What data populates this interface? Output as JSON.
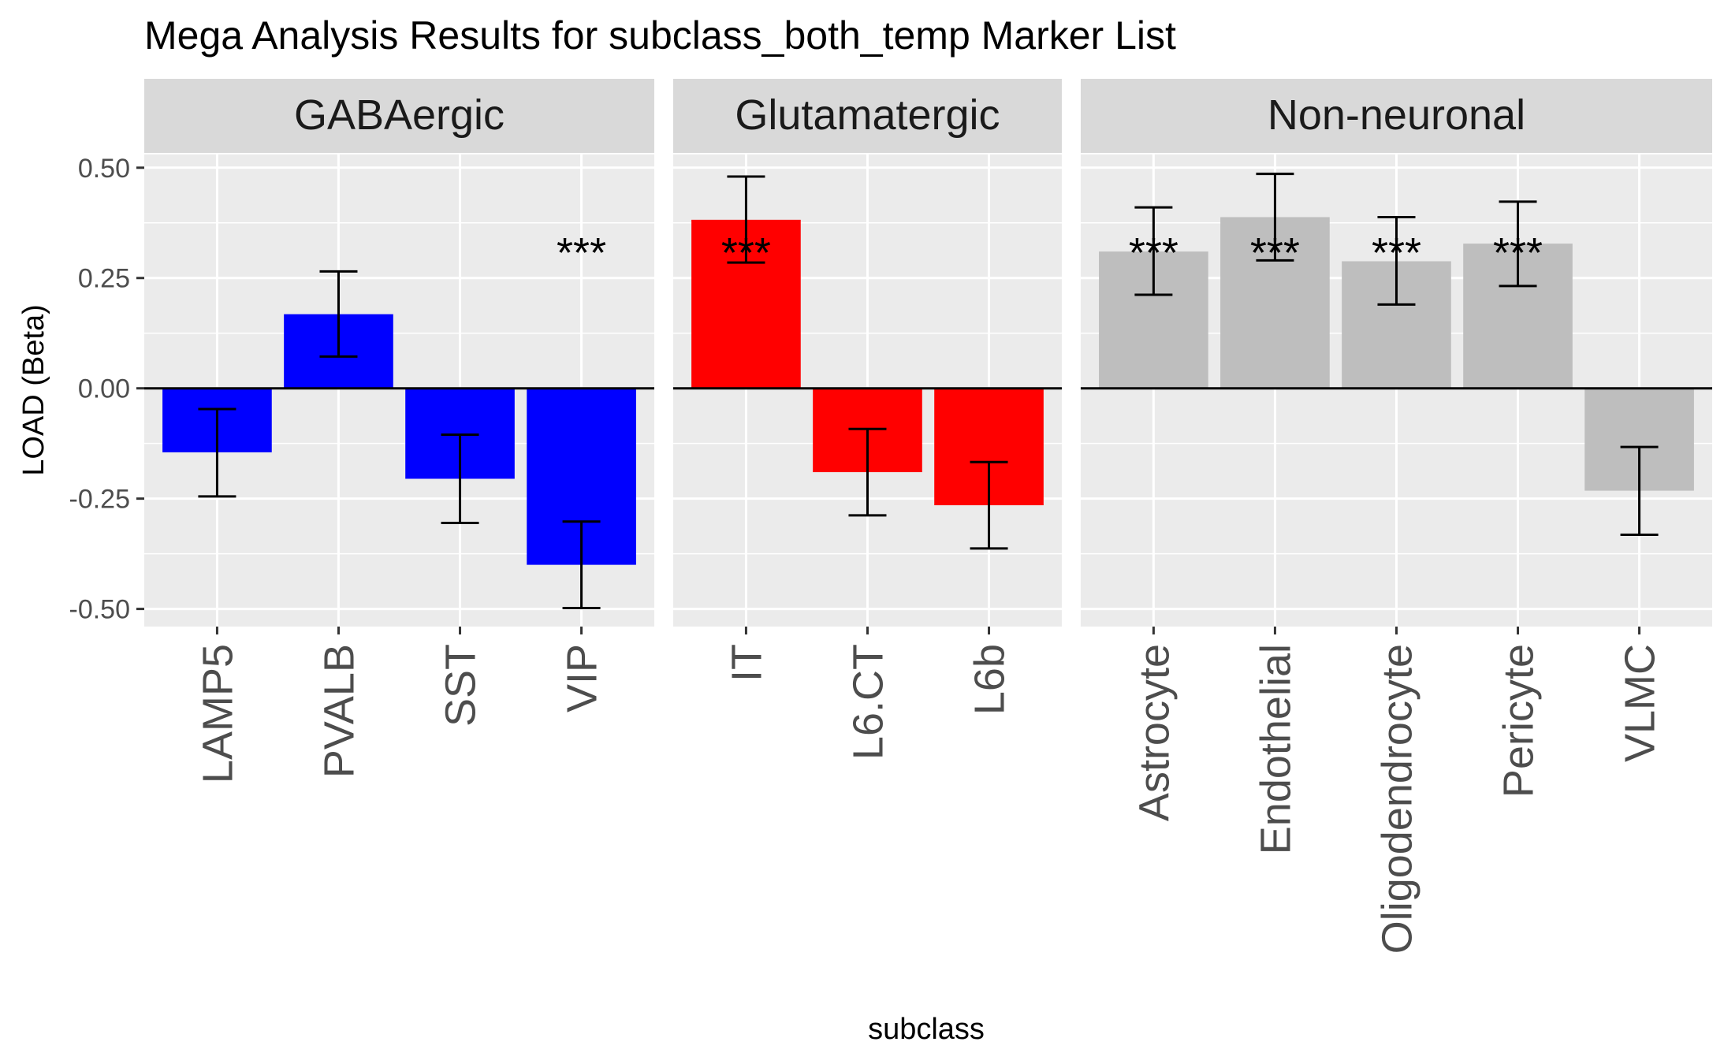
{
  "chart_data": {
    "type": "bar",
    "title": "Mega Analysis Results for subclass_both_temp Marker List",
    "xlabel": "subclass",
    "ylabel": "LOAD (Beta)",
    "ylim": [
      -0.54,
      0.53
    ],
    "yticks": [
      "0.50",
      "0.25",
      "0.00",
      "-0.25",
      "-0.50"
    ],
    "ytick_values": [
      0.5,
      0.25,
      0,
      -0.25,
      -0.5
    ],
    "grid": true,
    "significance_marker": "***",
    "panels": [
      {
        "name": "GABAergic",
        "color": "#0000FF",
        "categories": [
          "LAMP5",
          "PVALB",
          "SST",
          "VIP"
        ],
        "values": [
          -0.145,
          0.168,
          -0.205,
          -0.4
        ],
        "ci_low": [
          -0.245,
          0.072,
          -0.305,
          -0.498
        ],
        "ci_high": [
          -0.047,
          0.265,
          -0.105,
          -0.302
        ],
        "significant": [
          false,
          false,
          false,
          true
        ]
      },
      {
        "name": "Glutamatergic",
        "color": "#FF0000",
        "categories": [
          "IT",
          "L6.CT",
          "L6b"
        ],
        "values": [
          0.382,
          -0.19,
          -0.265
        ],
        "ci_low": [
          0.285,
          -0.288,
          -0.363
        ],
        "ci_high": [
          0.48,
          -0.092,
          -0.167
        ],
        "significant": [
          true,
          false,
          false
        ]
      },
      {
        "name": "Non-neuronal",
        "color": "#BEBEBE",
        "categories": [
          "Astrocyte",
          "Endothelial",
          "Oligodendrocyte",
          "Pericyte",
          "VLMC"
        ],
        "values": [
          0.31,
          0.388,
          0.288,
          0.328,
          -0.232
        ],
        "ci_low": [
          0.212,
          0.29,
          0.19,
          0.232,
          -0.332
        ],
        "ci_high": [
          0.41,
          0.486,
          0.388,
          0.423,
          -0.133
        ],
        "significant": [
          true,
          true,
          true,
          true,
          false
        ]
      }
    ]
  }
}
